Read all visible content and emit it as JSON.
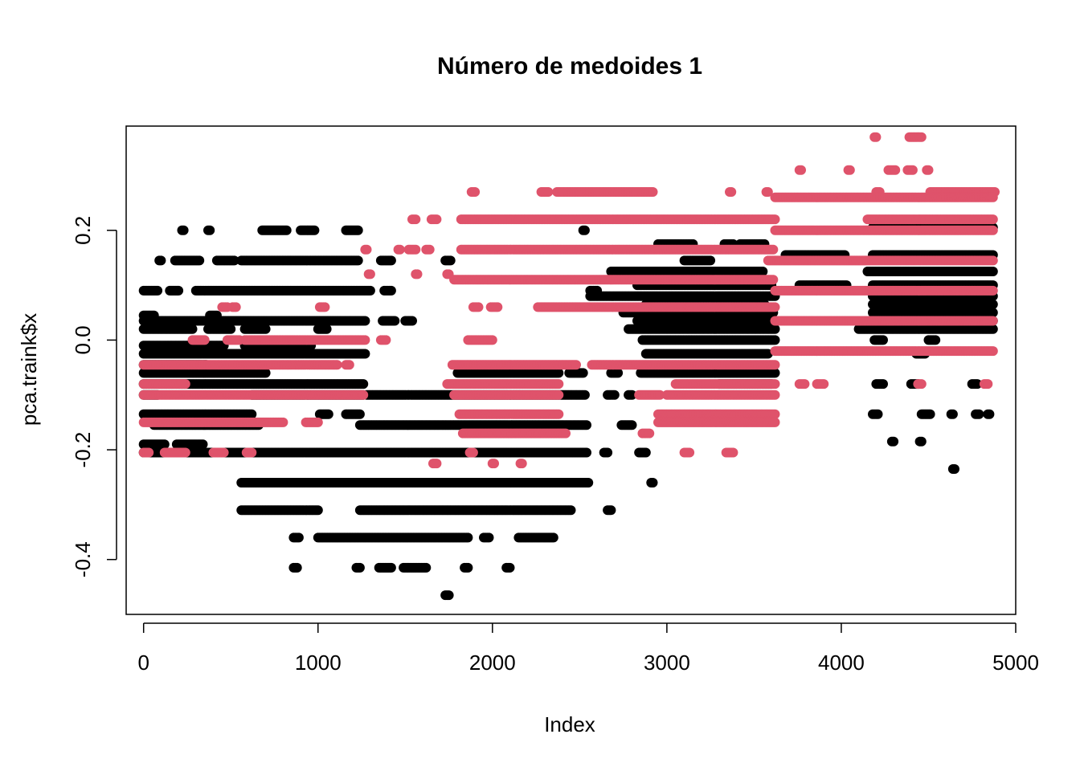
{
  "chart_data": {
    "type": "scatter",
    "title": "Número de medoides  1",
    "xlabel": "Index",
    "ylabel": "pca.traink$x",
    "xlim": [
      -100,
      5000
    ],
    "ylim": [
      -0.5,
      0.39
    ],
    "x_ticks": [
      0,
      1000,
      2000,
      3000,
      4000,
      5000
    ],
    "x_tick_labels": [
      "0",
      "1000",
      "2000",
      "3000",
      "4000",
      "5000"
    ],
    "y_ticks": [
      -0.4,
      -0.2,
      0.0,
      0.2
    ],
    "y_tick_labels": [
      "-0.4",
      "-0.2",
      "0.0",
      "0.2"
    ],
    "grid": false,
    "legend": "none",
    "n_points": 4870,
    "colors": {
      "cluster1": "#000000",
      "cluster2": "#DF536B"
    },
    "series": [
      {
        "color": "#000000",
        "bands": [
          {
            "y": 0.2,
            "x": [
              [
                220,
                230
              ],
              [
                370,
                380
              ],
              [
                680,
                820
              ],
              [
                900,
                980
              ],
              [
                1160,
                1230
              ],
              [
                2520,
                2530
              ]
            ]
          },
          {
            "y": 0.145,
            "x": [
              [
                90,
                100
              ],
              [
                180,
                320
              ],
              [
                420,
                520
              ],
              [
                560,
                1230
              ],
              [
                1360,
                1420
              ],
              [
                1730,
                1760
              ]
            ]
          },
          {
            "y": 0.09,
            "x": [
              [
                0,
                80
              ],
              [
                150,
                200
              ],
              [
                300,
                1300
              ],
              [
                1380,
                1420
              ],
              [
                2560,
                2600
              ]
            ]
          },
          {
            "y": 0.045,
            "x": [
              [
                0,
                60
              ],
              [
                380,
                420
              ]
            ]
          },
          {
            "y": 0.035,
            "x": [
              [
                0,
                1270
              ],
              [
                1370,
                1440
              ],
              [
                1500,
                1540
              ]
            ]
          },
          {
            "y": 0.02,
            "x": [
              [
                0,
                280
              ],
              [
                370,
                500
              ],
              [
                580,
                700
              ],
              [
                1000,
                1050
              ]
            ]
          },
          {
            "y": -0.01,
            "x": [
              [
                0,
                460
              ],
              [
                580,
                960
              ]
            ]
          },
          {
            "y": -0.025,
            "x": [
              [
                0,
                1270
              ]
            ]
          },
          {
            "y": -0.045,
            "x": [
              [
                0,
                360
              ]
            ]
          },
          {
            "y": -0.06,
            "x": [
              [
                0,
                700
              ],
              [
                1800,
                2380
              ],
              [
                2440,
                2520
              ]
            ]
          },
          {
            "y": -0.08,
            "x": [
              [
                0,
                1260
              ]
            ]
          },
          {
            "y": -0.1,
            "x": [
              [
                0,
                80
              ],
              [
                620,
                1260
              ],
              [
                1280,
                2530
              ]
            ]
          },
          {
            "y": -0.135,
            "x": [
              [
                0,
                620
              ],
              [
                1010,
                1060
              ],
              [
                1160,
                1240
              ]
            ]
          },
          {
            "y": -0.155,
            "x": [
              [
                60,
                660
              ],
              [
                1240,
                2540
              ],
              [
                2740,
                2800
              ]
            ]
          },
          {
            "y": -0.19,
            "x": [
              [
                0,
                120
              ],
              [
                190,
                340
              ]
            ]
          },
          {
            "y": -0.205,
            "x": [
              [
                0,
                2540
              ],
              [
                2640,
                2660
              ],
              [
                2840,
                2880
              ]
            ]
          },
          {
            "y": -0.26,
            "x": [
              [
                560,
                2550
              ]
            ]
          },
          {
            "y": -0.31,
            "x": [
              [
                560,
                1000
              ],
              [
                1240,
                2450
              ],
              [
                2660,
                2680
              ]
            ]
          },
          {
            "y": -0.36,
            "x": [
              [
                860,
                890
              ],
              [
                1000,
                1860
              ],
              [
                1950,
                1980
              ],
              [
                2150,
                2350
              ]
            ]
          },
          {
            "y": -0.415,
            "x": [
              [
                860,
                880
              ],
              [
                1220,
                1240
              ],
              [
                1350,
                1420
              ],
              [
                1490,
                1620
              ],
              [
                1840,
                1860
              ],
              [
                2080,
                2100
              ]
            ]
          },
          {
            "y": -0.465,
            "x": [
              [
                1730,
                1750
              ]
            ]
          },
          {
            "y": 0.175,
            "x": [
              [
                2950,
                3150
              ],
              [
                3330,
                3380
              ],
              [
                3420,
                3560
              ]
            ]
          },
          {
            "y": 0.155,
            "x": [
              [
                3680,
                4020
              ],
              [
                4180,
                4870
              ]
            ]
          },
          {
            "y": 0.145,
            "x": [
              [
                3100,
                3250
              ]
            ]
          },
          {
            "y": 0.125,
            "x": [
              [
                2680,
                3550
              ],
              [
                4150,
                4870
              ]
            ]
          },
          {
            "y": 0.1,
            "x": [
              [
                2830,
                3600
              ],
              [
                3760,
                4030
              ],
              [
                4180,
                4870
              ]
            ]
          },
          {
            "y": 0.08,
            "x": [
              [
                2560,
                3620
              ],
              [
                4180,
                4870
              ]
            ]
          },
          {
            "y": 0.065,
            "x": [
              [
                2880,
                3560
              ],
              [
                4180,
                4870
              ]
            ]
          },
          {
            "y": 0.05,
            "x": [
              [
                2750,
                3610
              ],
              [
                4180,
                4870
              ]
            ]
          },
          {
            "y": 0.035,
            "x": [
              [
                2830,
                3620
              ],
              [
                4220,
                4870
              ]
            ]
          },
          {
            "y": 0.02,
            "x": [
              [
                2780,
                3620
              ],
              [
                4100,
                4870
              ]
            ]
          },
          {
            "y": 0.0,
            "x": [
              [
                2860,
                3620
              ],
              [
                4190,
                4240
              ],
              [
                4500,
                4540
              ]
            ]
          },
          {
            "y": -0.025,
            "x": [
              [
                2880,
                3580
              ],
              [
                4430,
                4480
              ]
            ]
          },
          {
            "y": -0.06,
            "x": [
              [
                2680,
                2720
              ],
              [
                2850,
                3620
              ]
            ]
          },
          {
            "y": -0.08,
            "x": [
              [
                3300,
                3600
              ],
              [
                4200,
                4240
              ],
              [
                4400,
                4440
              ],
              [
                4750,
                4780
              ]
            ]
          },
          {
            "y": -0.1,
            "x": [
              [
                2660,
                2700
              ],
              [
                2780,
                2800
              ]
            ]
          },
          {
            "y": -0.135,
            "x": [
              [
                4180,
                4210
              ],
              [
                4460,
                4510
              ],
              [
                4630,
                4640
              ],
              [
                4770,
                4790
              ],
              [
                4840,
                4850
              ]
            ]
          },
          {
            "y": -0.185,
            "x": [
              [
                4290,
                4300
              ],
              [
                4450,
                4460
              ]
            ]
          },
          {
            "y": -0.235,
            "x": [
              [
                4640,
                4650
              ]
            ]
          },
          {
            "y": -0.26,
            "x": [
              [
                2910,
                2920
              ]
            ]
          },
          {
            "y": 0.205,
            "x": [
              [
                4180,
                4870
              ]
            ]
          }
        ]
      },
      {
        "color": "#DF536B",
        "bands": [
          {
            "y": 0.37,
            "x": [
              [
                4190,
                4200
              ],
              [
                4390,
                4460
              ]
            ]
          },
          {
            "y": 0.31,
            "x": [
              [
                3760,
                3770
              ],
              [
                4040,
                4050
              ],
              [
                4270,
                4310
              ],
              [
                4380,
                4410
              ],
              [
                4490,
                4500
              ]
            ]
          },
          {
            "y": 0.27,
            "x": [
              [
                1880,
                1900
              ],
              [
                2280,
                2320
              ],
              [
                2370,
                2920
              ],
              [
                3360,
                3370
              ],
              [
                3570,
                3580
              ],
              [
                4200,
                4220
              ],
              [
                4510,
                4880
              ]
            ]
          },
          {
            "y": 0.26,
            "x": [
              [
                3620,
                4870
              ]
            ]
          },
          {
            "y": 0.22,
            "x": [
              [
                1540,
                1560
              ],
              [
                1650,
                1680
              ],
              [
                1820,
                3620
              ],
              [
                4150,
                4870
              ]
            ]
          },
          {
            "y": 0.2,
            "x": [
              [
                3620,
                4870
              ]
            ]
          },
          {
            "y": 0.165,
            "x": [
              [
                1270,
                1280
              ],
              [
                1460,
                1470
              ],
              [
                1520,
                1560
              ],
              [
                1620,
                1640
              ],
              [
                1820,
                3610
              ]
            ]
          },
          {
            "y": 0.145,
            "x": [
              [
                3580,
                4870
              ]
            ]
          },
          {
            "y": 0.12,
            "x": [
              [
                1290,
                1300
              ],
              [
                1560,
                1570
              ],
              [
                1740,
                1750
              ]
            ]
          },
          {
            "y": 0.11,
            "x": [
              [
                1780,
                3610
              ]
            ]
          },
          {
            "y": 0.09,
            "x": [
              [
                3620,
                4870
              ]
            ]
          },
          {
            "y": 0.06,
            "x": [
              [
                450,
                480
              ],
              [
                510,
                530
              ],
              [
                1010,
                1040
              ],
              [
                1890,
                1920
              ],
              [
                1990,
                2030
              ],
              [
                2260,
                3620
              ]
            ]
          },
          {
            "y": 0.035,
            "x": [
              [
                3620,
                4870
              ]
            ]
          },
          {
            "y": 0.0,
            "x": [
              [
                280,
                350
              ],
              [
                480,
                550
              ],
              [
                580,
                1270
              ],
              [
                1360,
                1390
              ],
              [
                1860,
                2000
              ]
            ]
          },
          {
            "y": -0.02,
            "x": [
              [
                3620,
                4870
              ]
            ]
          },
          {
            "y": -0.045,
            "x": [
              [
                0,
                1110
              ],
              [
                1160,
                1180
              ],
              [
                1770,
                2480
              ],
              [
                2570,
                3620
              ]
            ]
          },
          {
            "y": -0.08,
            "x": [
              [
                0,
                240
              ],
              [
                1740,
                2380
              ],
              [
                3050,
                3620
              ],
              [
                3760,
                3790
              ],
              [
                3860,
                3900
              ],
              [
                4440,
                4460
              ],
              [
                4820,
                4840
              ]
            ]
          },
          {
            "y": -0.1,
            "x": [
              [
                0,
                1260
              ],
              [
                1780,
                2380
              ],
              [
                2840,
                2960
              ],
              [
                3000,
                3620
              ]
            ]
          },
          {
            "y": -0.135,
            "x": [
              [
                1810,
                2380
              ],
              [
                2950,
                3620
              ]
            ]
          },
          {
            "y": -0.15,
            "x": [
              [
                0,
                800
              ],
              [
                930,
                1000
              ],
              [
                2950,
                3620
              ]
            ]
          },
          {
            "y": -0.17,
            "x": [
              [
                1830,
                2420
              ],
              [
                2860,
                2900
              ]
            ]
          },
          {
            "y": -0.205,
            "x": [
              [
                0,
                30
              ],
              [
                120,
                240
              ],
              [
                400,
                460
              ],
              [
                590,
                620
              ],
              [
                1870,
                1890
              ],
              [
                3100,
                3130
              ],
              [
                3340,
                3380
              ]
            ]
          },
          {
            "y": -0.225,
            "x": [
              [
                1660,
                1680
              ],
              [
                2000,
                2010
              ],
              [
                2160,
                2170
              ]
            ]
          }
        ]
      }
    ]
  }
}
